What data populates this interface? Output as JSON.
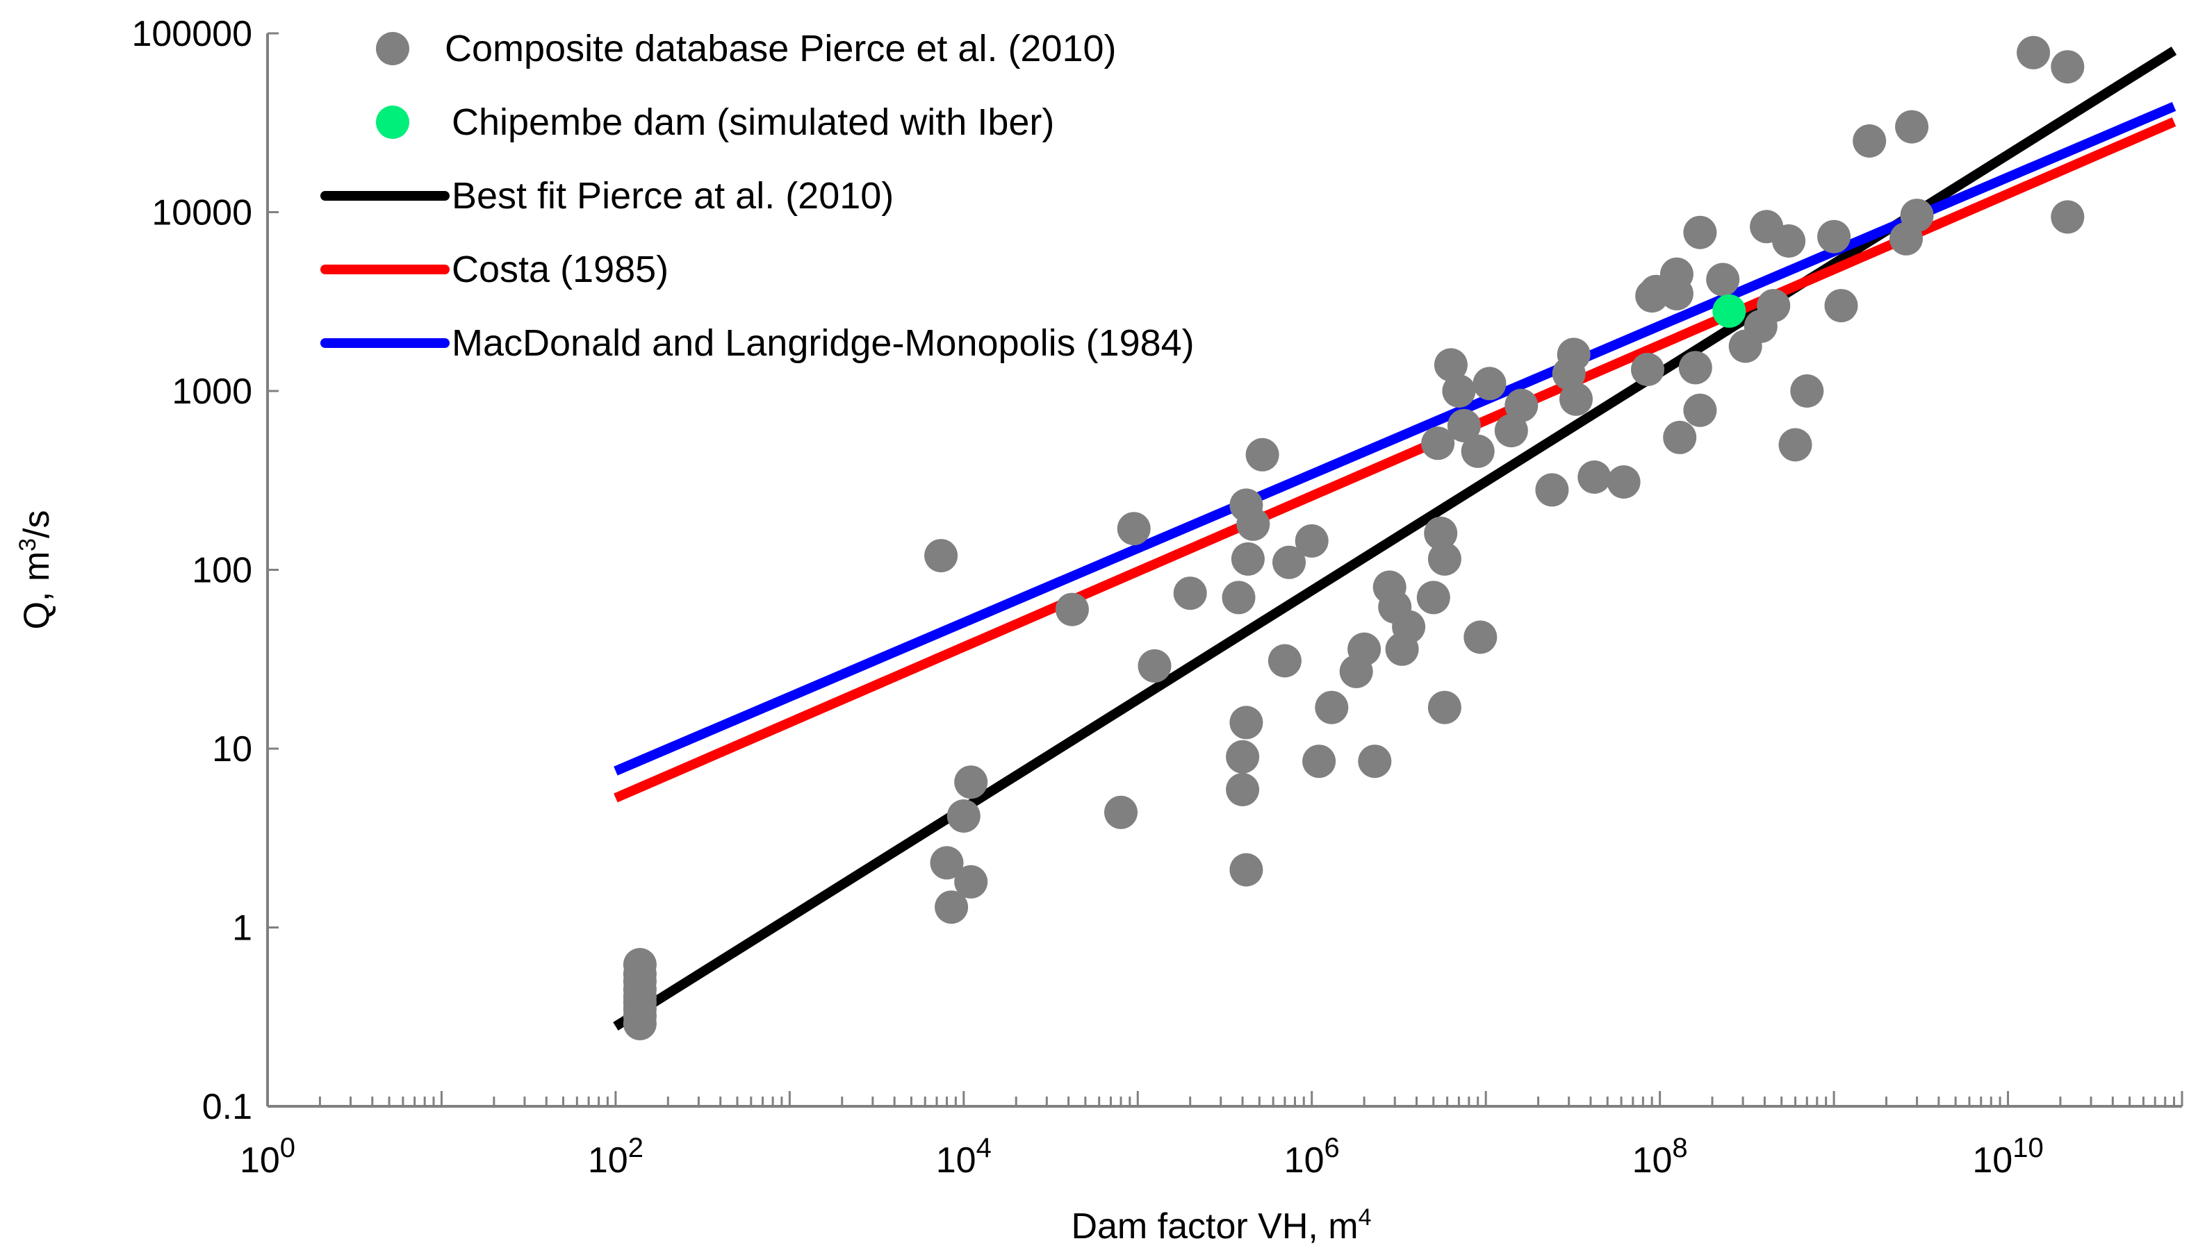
{
  "chart_data": {
    "type": "scatter",
    "xlabel": "Dam factor VH, m",
    "xlabel_sup": "4",
    "ylabel": "Q, m",
    "ylabel_sup": "3",
    "ylabel_suffix": "/s",
    "x_scale": "log",
    "y_scale": "log",
    "xlim": [
      1,
      100000000000
    ],
    "ylim": [
      0.1,
      100000
    ],
    "x_ticks": [
      {
        "base": "10",
        "exp": "0",
        "value": 1
      },
      {
        "base": "10",
        "exp": "2",
        "value": 100
      },
      {
        "base": "10",
        "exp": "4",
        "value": 10000
      },
      {
        "base": "10",
        "exp": "6",
        "value": 1000000
      },
      {
        "base": "10",
        "exp": "8",
        "value": 100000000
      },
      {
        "base": "10",
        "exp": "10",
        "value": 10000000000
      }
    ],
    "y_ticks": [
      {
        "label": "0.1",
        "value": 0.1
      },
      {
        "label": "1",
        "value": 1
      },
      {
        "label": "10",
        "value": 10
      },
      {
        "label": "100",
        "value": 100
      },
      {
        "label": "1000",
        "value": 1000
      },
      {
        "label": "10000",
        "value": 10000
      },
      {
        "label": "100000",
        "value": 100000
      }
    ],
    "grid": false,
    "legend_position": "top-left",
    "series": [
      {
        "name": "Composite database Pierce et al. (2010)",
        "kind": "scatter",
        "color": "#808080",
        "points": [
          [
            138,
            0.62
          ],
          [
            138,
            0.55
          ],
          [
            138,
            0.5
          ],
          [
            138,
            0.45
          ],
          [
            138,
            0.41
          ],
          [
            138,
            0.38
          ],
          [
            138,
            0.35
          ],
          [
            138,
            0.32
          ],
          [
            138,
            0.29
          ],
          [
            8000,
            2.3
          ],
          [
            8500,
            1.3
          ],
          [
            10000,
            4.2
          ],
          [
            11000,
            1.8
          ],
          [
            11000,
            6.5
          ],
          [
            7400,
            120
          ],
          [
            42000,
            60
          ],
          [
            80000,
            4.4
          ],
          [
            95000,
            170
          ],
          [
            125000,
            29
          ],
          [
            200000,
            74
          ],
          [
            380000,
            70
          ],
          [
            400000,
            5.9
          ],
          [
            400000,
            9
          ],
          [
            420000,
            2.1
          ],
          [
            420000,
            14
          ],
          [
            430000,
            115
          ],
          [
            420000,
            230
          ],
          [
            460000,
            180
          ],
          [
            520000,
            440
          ],
          [
            700000,
            31
          ],
          [
            740000,
            110
          ],
          [
            1000000,
            145
          ],
          [
            1100000,
            8.5
          ],
          [
            1300000,
            17
          ],
          [
            1800000,
            27
          ],
          [
            2000000,
            36
          ],
          [
            2300000,
            8.5
          ],
          [
            2800000,
            80
          ],
          [
            3000000,
            62
          ],
          [
            3300000,
            36
          ],
          [
            3600000,
            48
          ],
          [
            5000000,
            70
          ],
          [
            5300000,
            510
          ],
          [
            5500000,
            160
          ],
          [
            5800000,
            17
          ],
          [
            5800000,
            115
          ],
          [
            6300000,
            1400
          ],
          [
            7000000,
            1000
          ],
          [
            7500000,
            640
          ],
          [
            9000000,
            460
          ],
          [
            9300000,
            42
          ],
          [
            10500000,
            1100
          ],
          [
            14000000,
            600
          ],
          [
            16000000,
            830
          ],
          [
            24000000,
            280
          ],
          [
            30000000,
            1250
          ],
          [
            32000000,
            1600
          ],
          [
            33000000,
            900
          ],
          [
            42000000,
            330
          ],
          [
            62000000,
            310
          ],
          [
            85000000,
            1320
          ],
          [
            90000000,
            3400
          ],
          [
            95000000,
            3600
          ],
          [
            125000000,
            3500
          ],
          [
            125000000,
            4500
          ],
          [
            130000000,
            550
          ],
          [
            160000000,
            1350
          ],
          [
            170000000,
            780
          ],
          [
            170000000,
            7700
          ],
          [
            230000000,
            4200
          ],
          [
            310000000,
            1780
          ],
          [
            380000000,
            2300
          ],
          [
            410000000,
            8300
          ],
          [
            450000000,
            3000
          ],
          [
            550000000,
            6900
          ],
          [
            600000000,
            500
          ],
          [
            700000000,
            1000
          ],
          [
            1000000000,
            7300
          ],
          [
            1100000000,
            3000
          ],
          [
            1600000000,
            25000
          ],
          [
            2600000000,
            7100
          ],
          [
            2800000000,
            30000
          ],
          [
            3000000000,
            9600
          ],
          [
            14000000000,
            78000
          ],
          [
            22000000000,
            9400
          ],
          [
            22000000000,
            65000
          ]
        ]
      },
      {
        "name": "Chipembe dam (simulated with Iber)",
        "kind": "scatter",
        "color": "#00ee7a",
        "points": [
          [
            250000000,
            2800
          ]
        ]
      },
      {
        "name": "Best fit Pierce at al. (2010)",
        "kind": "line",
        "color": "#000000",
        "points": [
          [
            100,
            0.28
          ],
          [
            90000000000,
            80000
          ]
        ]
      },
      {
        "name": "Costa (1985)",
        "kind": "line",
        "color": "#ff0000",
        "points": [
          [
            100,
            5.3
          ],
          [
            90000000000,
            32000
          ]
        ]
      },
      {
        "name": "MacDonald and Langridge-Monopolis (1984)",
        "kind": "line",
        "color": "#0000ff",
        "points": [
          [
            100,
            7.5
          ],
          [
            90000000000,
            39000
          ]
        ]
      }
    ]
  }
}
